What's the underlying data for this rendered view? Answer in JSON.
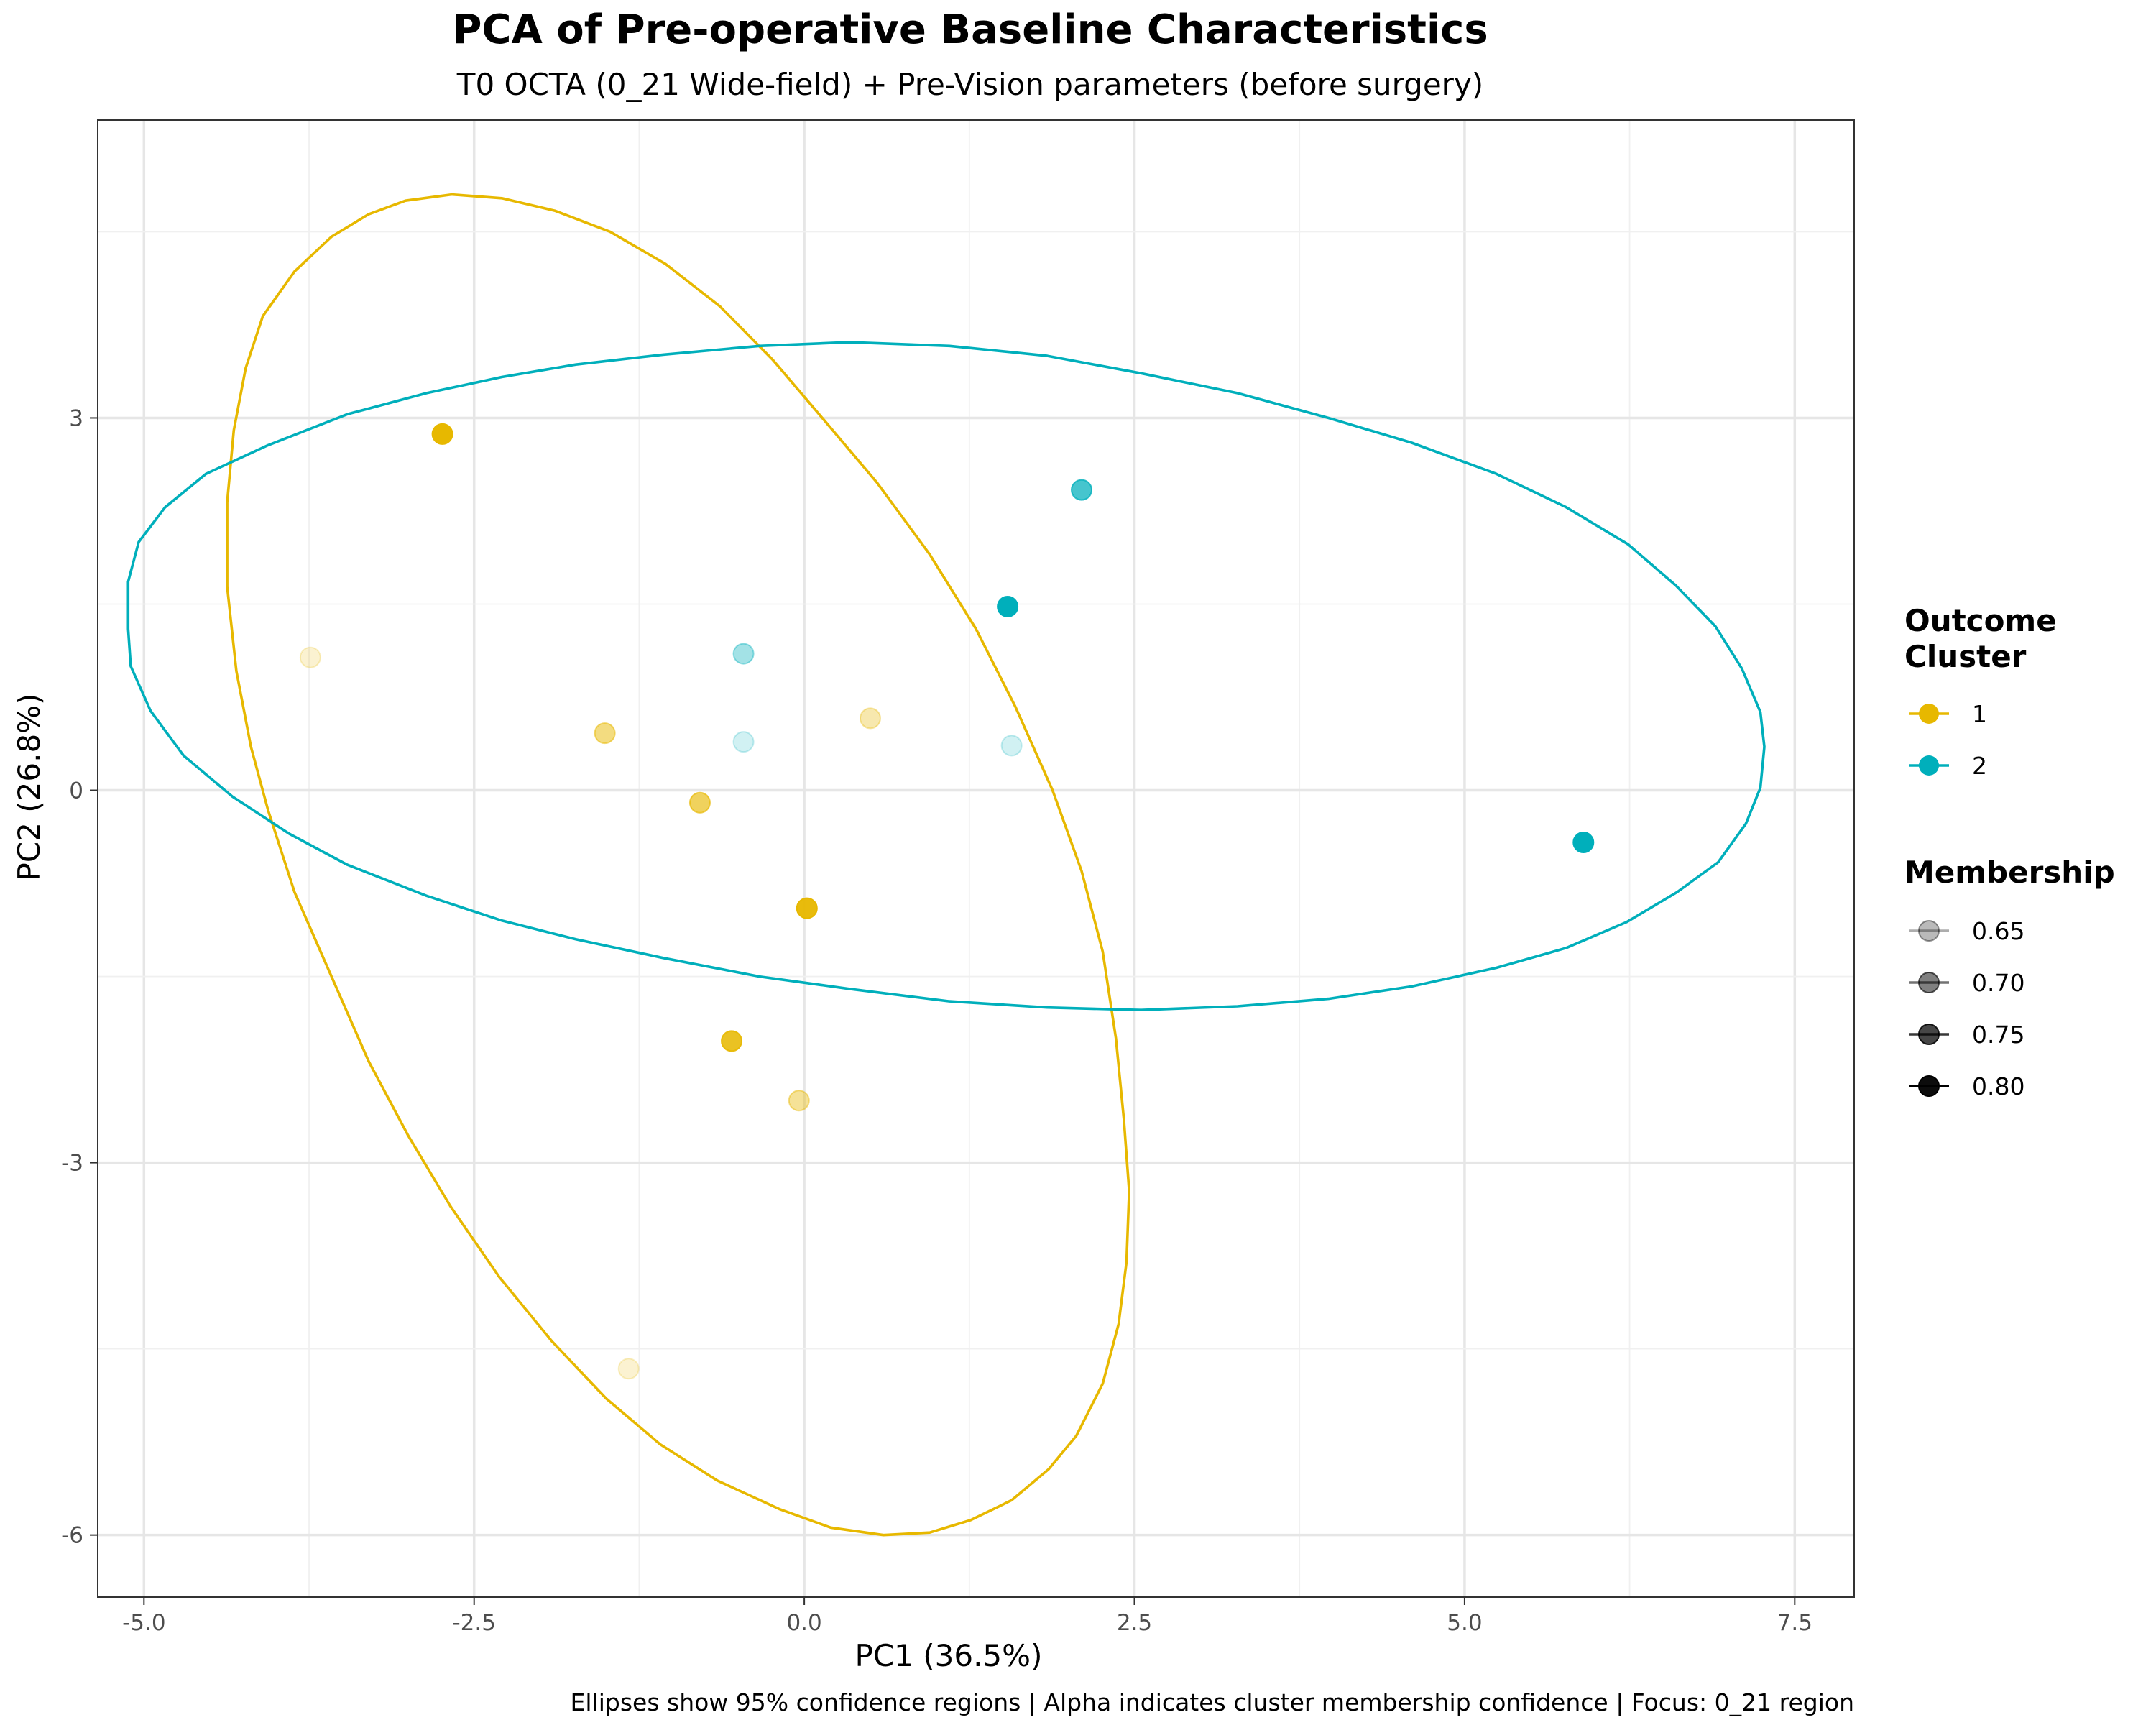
{
  "chart_data": {
    "type": "scatter",
    "title": "PCA of Pre-operative Baseline Characteristics",
    "subtitle": "T0 OCTA (0_21 Wide-field) + Pre-Vision parameters (before surgery)",
    "xlabel": "PC1 (36.5%)",
    "ylabel": "PC2 (26.8%)",
    "caption": "Ellipses show 95% confidence regions | Alpha indicates cluster membership confidence | Focus: 0_21 region",
    "xlim": [
      -5.35,
      7.95
    ],
    "ylim": [
      -6.5,
      5.4
    ],
    "x_ticks": [
      -5.0,
      -2.5,
      0.0,
      2.5,
      5.0,
      7.5
    ],
    "x_tick_labels": [
      "-5.0",
      "-2.5",
      "0.0",
      "2.5",
      "5.0",
      "7.5"
    ],
    "y_ticks": [
      -6,
      -3,
      0,
      3
    ],
    "y_tick_labels": [
      "-6",
      "-3",
      "0",
      "3"
    ],
    "grid": true,
    "colors": {
      "1": "#E7B800",
      "2": "#00AFBB"
    },
    "series": [
      {
        "name": "1",
        "points": [
          {
            "x": -2.74,
            "y": 2.87,
            "membership": 0.8
          },
          {
            "x": -3.74,
            "y": 1.07,
            "membership": 0.62
          },
          {
            "x": -1.51,
            "y": 0.46,
            "membership": 0.69
          },
          {
            "x": 0.5,
            "y": 0.58,
            "membership": 0.65
          },
          {
            "x": -0.79,
            "y": -0.1,
            "membership": 0.72
          },
          {
            "x": 0.02,
            "y": -0.95,
            "membership": 0.79
          },
          {
            "x": -0.55,
            "y": -2.02,
            "membership": 0.77
          },
          {
            "x": -0.04,
            "y": -2.5,
            "membership": 0.67
          },
          {
            "x": -1.33,
            "y": -4.66,
            "membership": 0.62
          }
        ],
        "ellipse": [
          [
            -4.1,
            3.82
          ],
          [
            -3.86,
            4.18
          ],
          [
            -3.58,
            4.46
          ],
          [
            -3.3,
            4.64
          ],
          [
            -3.02,
            4.75
          ],
          [
            -2.67,
            4.8
          ],
          [
            -2.29,
            4.77
          ],
          [
            -1.89,
            4.67
          ],
          [
            -1.47,
            4.5
          ],
          [
            -1.05,
            4.24
          ],
          [
            -0.64,
            3.9
          ],
          [
            -0.24,
            3.47
          ],
          [
            0.16,
            2.97
          ],
          [
            0.55,
            2.48
          ],
          [
            0.95,
            1.9
          ],
          [
            1.3,
            1.3
          ],
          [
            1.6,
            0.67
          ],
          [
            1.88,
            0.0
          ],
          [
            2.1,
            -0.65
          ],
          [
            2.26,
            -1.3
          ],
          [
            2.36,
            -2.0
          ],
          [
            2.42,
            -2.65
          ],
          [
            2.46,
            -3.23
          ],
          [
            2.44,
            -3.8
          ],
          [
            2.38,
            -4.3
          ],
          [
            2.26,
            -4.78
          ],
          [
            2.06,
            -5.2
          ],
          [
            1.85,
            -5.47
          ],
          [
            1.57,
            -5.72
          ],
          [
            1.26,
            -5.88
          ],
          [
            0.95,
            -5.98
          ],
          [
            0.6,
            -6.0
          ],
          [
            0.2,
            -5.94
          ],
          [
            -0.19,
            -5.79
          ],
          [
            -0.66,
            -5.56
          ],
          [
            -1.09,
            -5.27
          ],
          [
            -1.5,
            -4.9
          ],
          [
            -1.91,
            -4.44
          ],
          [
            -2.31,
            -3.92
          ],
          [
            -2.68,
            -3.35
          ],
          [
            -3.0,
            -2.78
          ],
          [
            -3.3,
            -2.18
          ],
          [
            -3.58,
            -1.5
          ],
          [
            -3.86,
            -0.82
          ],
          [
            -4.06,
            -0.16
          ],
          [
            -4.19,
            0.35
          ],
          [
            -4.3,
            0.96
          ],
          [
            -4.37,
            1.64
          ],
          [
            -4.37,
            2.32
          ],
          [
            -4.32,
            2.9
          ],
          [
            -4.23,
            3.4
          ],
          [
            -4.1,
            3.82
          ]
        ]
      },
      {
        "name": "2",
        "points": [
          {
            "x": 2.1,
            "y": 2.42,
            "membership": 0.74
          },
          {
            "x": 1.54,
            "y": 1.48,
            "membership": 0.8
          },
          {
            "x": -0.46,
            "y": 1.1,
            "membership": 0.66
          },
          {
            "x": -0.46,
            "y": 0.39,
            "membership": 0.62
          },
          {
            "x": 1.57,
            "y": 0.36,
            "membership": 0.62
          },
          {
            "x": 5.9,
            "y": -0.42,
            "membership": 0.8
          }
        ],
        "ellipse": [
          [
            -3.46,
            3.03
          ],
          [
            -2.86,
            3.2
          ],
          [
            -2.29,
            3.33
          ],
          [
            -1.73,
            3.43
          ],
          [
            -1.07,
            3.51
          ],
          [
            -0.34,
            3.58
          ],
          [
            0.34,
            3.61
          ],
          [
            1.1,
            3.58
          ],
          [
            1.84,
            3.5
          ],
          [
            2.55,
            3.36
          ],
          [
            3.28,
            3.2
          ],
          [
            3.97,
            3.0
          ],
          [
            4.6,
            2.8
          ],
          [
            5.24,
            2.55
          ],
          [
            5.77,
            2.28
          ],
          [
            6.24,
            1.98
          ],
          [
            6.6,
            1.65
          ],
          [
            6.9,
            1.32
          ],
          [
            7.1,
            0.98
          ],
          [
            7.24,
            0.63
          ],
          [
            7.27,
            0.35
          ],
          [
            7.24,
            0.02
          ],
          [
            7.13,
            -0.27
          ],
          [
            6.92,
            -0.58
          ],
          [
            6.61,
            -0.82
          ],
          [
            6.23,
            -1.06
          ],
          [
            5.77,
            -1.27
          ],
          [
            5.24,
            -1.43
          ],
          [
            4.6,
            -1.58
          ],
          [
            3.97,
            -1.68
          ],
          [
            3.28,
            -1.74
          ],
          [
            2.55,
            -1.77
          ],
          [
            1.84,
            -1.75
          ],
          [
            1.1,
            -1.7
          ],
          [
            0.34,
            -1.6
          ],
          [
            -0.34,
            -1.5
          ],
          [
            -1.07,
            -1.35
          ],
          [
            -1.73,
            -1.2
          ],
          [
            -2.29,
            -1.05
          ],
          [
            -2.86,
            -0.85
          ],
          [
            -3.46,
            -0.6
          ],
          [
            -3.9,
            -0.35
          ],
          [
            -4.33,
            -0.05
          ],
          [
            -4.7,
            0.28
          ],
          [
            -4.95,
            0.64
          ],
          [
            -5.1,
            1.0
          ],
          [
            -5.12,
            1.3
          ],
          [
            -5.12,
            1.68
          ],
          [
            -5.04,
            2.0
          ],
          [
            -4.84,
            2.28
          ],
          [
            -4.53,
            2.55
          ],
          [
            -4.06,
            2.78
          ],
          [
            -3.46,
            3.03
          ]
        ]
      }
    ],
    "legend": {
      "placement": "right",
      "color_title": "Outcome\nCluster",
      "color_entries": [
        "1",
        "2"
      ],
      "alpha_title": "Membership",
      "alpha_entries": [
        {
          "label": "0.65",
          "value": 0.65
        },
        {
          "label": "0.70",
          "value": 0.7
        },
        {
          "label": "0.75",
          "value": 0.75
        },
        {
          "label": "0.80",
          "value": 0.8
        }
      ]
    }
  }
}
